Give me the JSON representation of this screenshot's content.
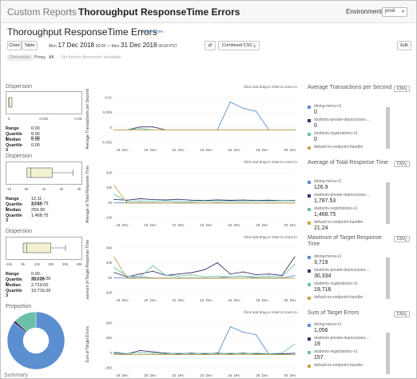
{
  "breadcrumb": {
    "parent": "Custom Reports",
    "sep": "›",
    "current": "Thoroughput ResponseTime Errors"
  },
  "environment": {
    "label": "Environment",
    "value": "prod",
    "chevron": "▾"
  },
  "page": {
    "title": "Thoroughput ResponseTime Errors",
    "learn_more": "Learn more"
  },
  "toolbar": {
    "chart_label": "Chart",
    "table_label": "Table",
    "date_from_day": "Mon",
    "date_from": "17 Dec 2018",
    "time_from": "00:00",
    "dash": "–",
    "date_to_day": "Mon",
    "date_to": "31 Dec 2018",
    "time_to": "00:00 PST",
    "swap_icon": "⇄",
    "combined_csv": "Combined CSV",
    "download_icon": "⤓",
    "edit": "Edit"
  },
  "dimension": {
    "label": "Dimension",
    "proxy": "Proxy",
    "all": "All",
    "none": "No further dimension available"
  },
  "zoom_hint": "Click and drag in chart to zoom in.",
  "csv_label": "CSV",
  "x_ticks": [
    "18. Dec",
    "20. Dec",
    "22. Dec",
    "24. Dec",
    "26. Dec",
    "28. Dec",
    "30. Dec"
  ],
  "series_names": [
    "dining-menu-v1",
    "students-private-depicourses-...",
    "students-registrations-v1",
    "default-no-endpoint-handler"
  ],
  "colors": {
    "blue": "#5b8fd0",
    "purple": "#3d3470",
    "teal": "#6cc0a8",
    "gold": "#c9a646",
    "orange": "#e08b4a",
    "gray": "#cfcfcf"
  },
  "panels": [
    {
      "dispersion_title": "Dispersion",
      "box_ticks": [
        "0",
        "0.001",
        "0.002"
      ],
      "stats": [
        [
          "Range",
          "0.00 - 0.00"
        ],
        [
          "Quartile 1",
          "0.00"
        ],
        [
          "Median",
          "0.00"
        ],
        [
          "Quartile 3",
          "0.00"
        ]
      ],
      "y_label": "Average Transactions per Second",
      "y_ticks": [
        "0.01",
        "0.005",
        "0",
        "-0.005"
      ],
      "legend_title": "Average Transactions per Second",
      "legend_values": [
        "0",
        "0",
        "0",
        ""
      ]
    },
    {
      "dispersion_title": "Dispersion",
      "box_ticks": [
        "-1k",
        "0k",
        "1k",
        "2k",
        "3k"
      ],
      "stats": [
        [
          "Range",
          "12.11 - 2,664.79"
        ],
        [
          "Quartile 1",
          "33.55"
        ],
        [
          "Median",
          "259.39"
        ],
        [
          "Quartile 3",
          "1,468.75"
        ]
      ],
      "y_label": "Average of Total Response Time",
      "y_ticks": [
        "20k",
        "10k",
        "0k",
        "-10k"
      ],
      "legend_title": "Average of Total Response Time",
      "legend_values": [
        "126.9",
        "1,787.53",
        "1,468.75",
        "21.24"
      ]
    },
    {
      "dispersion_title": "Dispersion",
      "box_ticks": [
        "-10k",
        "0k",
        "10k",
        "20k",
        "30k",
        "40k"
      ],
      "stats": [
        [
          "Range",
          "0.00 - 30,334.00"
        ],
        [
          "Quartile 1",
          "253.00"
        ],
        [
          "Median",
          "2,719.00"
        ],
        [
          "Quartile 3",
          "19,716.00"
        ]
      ],
      "y_label": "aximum of Target Response Time",
      "y_ticks": [
        "40k",
        "20k",
        "0k",
        "-20k"
      ],
      "legend_title": "Maximum of Target Response Time",
      "legend_values": [
        "3,719",
        "30,334",
        "19,716",
        ""
      ]
    },
    {
      "dispersion_title": "Proportion",
      "y_label": "Sum of Target Errors",
      "y_ticks": [
        "500",
        "250",
        "0",
        "-250"
      ],
      "legend_title": "Sum of Target Errors",
      "legend_values": [
        "1,056",
        "19",
        "157",
        ""
      ]
    }
  ],
  "summary_label": "Summary",
  "chart_data": [
    {
      "type": "line",
      "title": "Average Transactions per Second",
      "x": [
        "17 Dec",
        "18 Dec",
        "19 Dec",
        "20 Dec",
        "21 Dec",
        "22 Dec",
        "23 Dec",
        "24 Dec",
        "25 Dec",
        "26 Dec",
        "27 Dec",
        "28 Dec",
        "29 Dec",
        "30 Dec",
        "31 Dec"
      ],
      "ylim": [
        -0.005,
        0.012
      ],
      "series": [
        {
          "name": "dining-menu-v1",
          "values": [
            0,
            0,
            0,
            0,
            0,
            0,
            0,
            0,
            0,
            0.009,
            0.007,
            0.006,
            0,
            0,
            0
          ]
        },
        {
          "name": "students-private-depicourses-...",
          "values": [
            0,
            0,
            0.001,
            0.001,
            0,
            0,
            0,
            0,
            0,
            0,
            0,
            0,
            0,
            0,
            0
          ]
        },
        {
          "name": "students-registrations-v1",
          "values": [
            0,
            0,
            0.0005,
            0,
            0,
            0,
            0,
            0,
            0,
            0,
            0,
            0,
            0,
            0,
            0
          ]
        },
        {
          "name": "default-no-endpoint-handler",
          "values": [
            0,
            0,
            0,
            0,
            0,
            0,
            0,
            0,
            0,
            0,
            0,
            0,
            0,
            0,
            0
          ]
        }
      ]
    },
    {
      "type": "line",
      "title": "Average of Total Response Time",
      "x": [
        "17 Dec",
        "18 Dec",
        "19 Dec",
        "20 Dec",
        "21 Dec",
        "22 Dec",
        "23 Dec",
        "24 Dec",
        "25 Dec",
        "26 Dec",
        "27 Dec",
        "28 Dec",
        "29 Dec",
        "30 Dec",
        "31 Dec"
      ],
      "ylim": [
        -12000,
        24000
      ],
      "series": [
        {
          "name": "dining-menu-v1",
          "values": [
            200,
            100,
            300,
            200,
            100,
            300,
            200,
            100,
            200,
            100,
            150,
            120,
            130,
            100,
            127
          ]
        },
        {
          "name": "students-private-depicourses-...",
          "values": [
            2500,
            2000,
            3000,
            2400,
            2200,
            2600,
            2000,
            1800,
            2200,
            1900,
            2100,
            1800,
            2000,
            1700,
            1788
          ]
        },
        {
          "name": "students-registrations-v1",
          "values": [
            6000,
            1000,
            1500,
            1200,
            1400,
            1300,
            1100,
            1500,
            1200,
            1400,
            1300,
            1500,
            1400,
            1500,
            1469
          ]
        },
        {
          "name": "default-no-endpoint-handler",
          "values": [
            12000,
            0,
            50,
            20,
            30,
            20,
            10,
            30,
            20,
            10,
            20,
            30,
            20,
            20,
            21
          ]
        }
      ]
    },
    {
      "type": "line",
      "title": "Maximum of Target Response Time",
      "x": [
        "17 Dec",
        "18 Dec",
        "19 Dec",
        "20 Dec",
        "21 Dec",
        "22 Dec",
        "23 Dec",
        "24 Dec",
        "25 Dec",
        "26 Dec",
        "27 Dec",
        "28 Dec",
        "29 Dec",
        "30 Dec",
        "31 Dec"
      ],
      "ylim": [
        -25000,
        50000
      ],
      "series": [
        {
          "name": "dining-menu-v1",
          "values": [
            500,
            300,
            2000,
            400,
            300,
            500,
            400,
            300,
            500,
            2000,
            3000,
            400,
            500,
            300,
            3719
          ]
        },
        {
          "name": "students-private-depicourses-...",
          "values": [
            8000,
            2000,
            6000,
            10000,
            4000,
            6000,
            8000,
            12000,
            22000,
            6000,
            9000,
            5000,
            6000,
            4000,
            30334
          ]
        },
        {
          "name": "students-registrations-v1",
          "values": [
            15000,
            3000,
            2000,
            18000,
            4000,
            3000,
            5000,
            2000,
            3000,
            2000,
            3000,
            2000,
            3000,
            2000,
            19716
          ]
        },
        {
          "name": "default-no-endpoint-handler",
          "values": [
            30000,
            0,
            0,
            0,
            0,
            0,
            0,
            0,
            0,
            0,
            0,
            0,
            0,
            0,
            0
          ]
        }
      ]
    },
    {
      "type": "line",
      "title": "Sum of Target Errors",
      "x": [
        "17 Dec",
        "18 Dec",
        "19 Dec",
        "20 Dec",
        "21 Dec",
        "22 Dec",
        "23 Dec",
        "24 Dec",
        "25 Dec",
        "26 Dec",
        "27 Dec",
        "28 Dec",
        "29 Dec",
        "30 Dec",
        "31 Dec"
      ],
      "ylim": [
        -250,
        550
      ],
      "series": [
        {
          "name": "dining-menu-v1",
          "values": [
            0,
            0,
            0,
            0,
            0,
            0,
            0,
            0,
            0,
            420,
            340,
            300,
            0,
            0,
            0
          ]
        },
        {
          "name": "students-private-depicourses-...",
          "values": [
            20,
            10,
            60,
            40,
            20,
            10,
            20,
            10,
            20,
            10,
            20,
            10,
            10,
            10,
            19
          ]
        },
        {
          "name": "students-registrations-v1",
          "values": [
            40,
            10,
            30,
            20,
            10,
            20,
            10,
            20,
            10,
            20,
            10,
            20,
            10,
            20,
            157
          ]
        },
        {
          "name": "default-no-endpoint-handler",
          "values": [
            0,
            0,
            0,
            0,
            0,
            0,
            0,
            0,
            0,
            0,
            0,
            0,
            0,
            0,
            0
          ]
        }
      ]
    }
  ]
}
